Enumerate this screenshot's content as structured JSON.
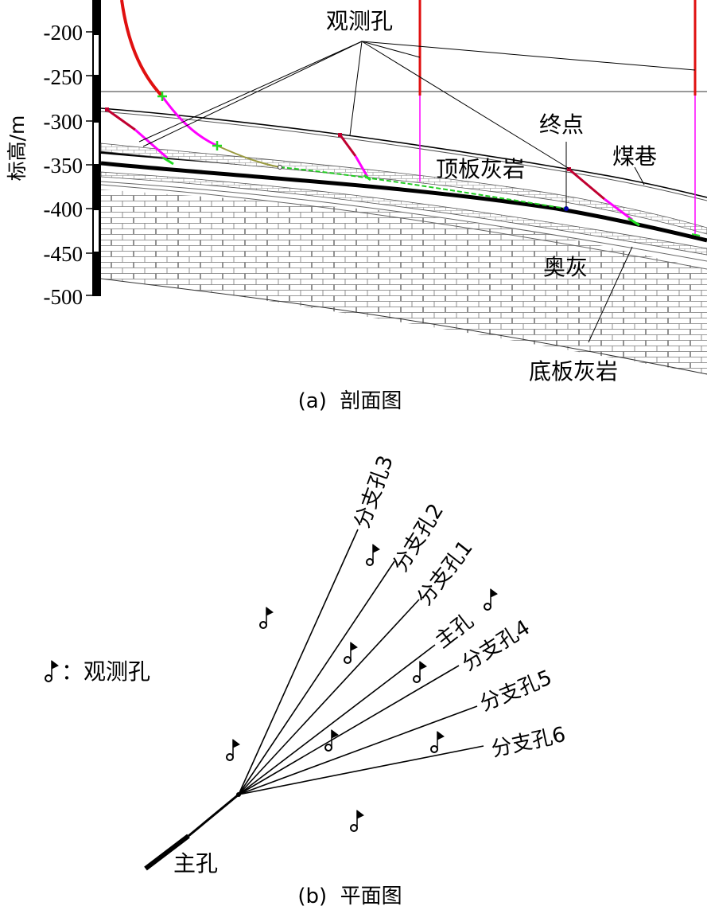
{
  "section": {
    "y_axis_label": "标高/m",
    "y_ticks": [
      "-200",
      "-250",
      "-300",
      "-350",
      "-400",
      "-450",
      "-500"
    ],
    "labels": {
      "observation_hole": "观测孔",
      "endpoint": "终点",
      "coal_roadway": "煤巷",
      "roof_limestone": "顶板灰岩",
      "ordovician_limestone": "奥灰",
      "floor_limestone": "底板灰岩"
    },
    "caption": "(a)  剖面图"
  },
  "plan": {
    "legend_label": "：观测孔",
    "branches": [
      "分支孔3",
      "分支孔2",
      "分支孔1",
      "主孔",
      "分支孔4",
      "分支孔5",
      "分支孔6"
    ],
    "main_hole_label": "主孔",
    "caption": "(b)  平面图"
  },
  "colors": {
    "main_borehole": "#e01010",
    "branch_borehole": "#ff00ff",
    "marker": "#22dd22",
    "tail_curve": "#9a9a40",
    "obs_hole_collar": "#c00030"
  }
}
